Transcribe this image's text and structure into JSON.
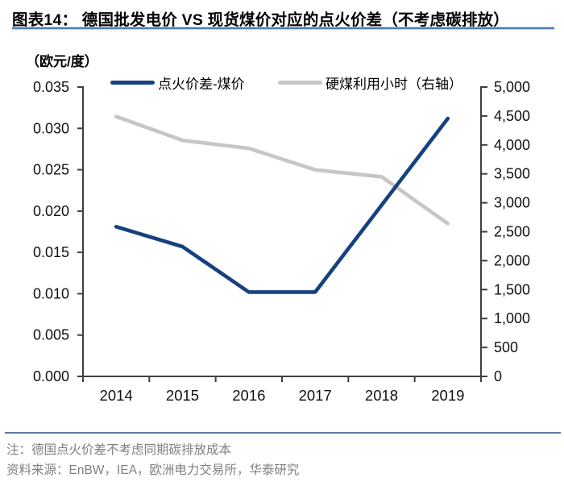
{
  "header": {
    "title": "图表14：  德国批发电价 VS 现货煤价对应的点火价差（不考虑碳排放）"
  },
  "chart_data": {
    "type": "line",
    "title": "德国批发电价 VS 现货煤价对应的点火价差（不考虑碳排放）",
    "unit_label": "（欧元/度）",
    "categories": [
      "2014",
      "2015",
      "2016",
      "2017",
      "2018",
      "2019"
    ],
    "series": [
      {
        "name": "点火价差-煤价",
        "axis": "left",
        "color": "#16417f",
        "values": [
          0.0181,
          0.0157,
          0.0102,
          0.0102,
          0.0207,
          0.0312
        ]
      },
      {
        "name": "硬煤利用小时（右轴）",
        "axis": "right",
        "color": "#c6c6c6",
        "values": [
          4490,
          4080,
          3940,
          3570,
          3450,
          2640
        ]
      }
    ],
    "left_axis": {
      "min": 0,
      "max": 0.035,
      "step": 0.005,
      "tick_labels_top_to_bottom": [
        "0.035",
        "0.030",
        "0.025",
        "0.020",
        "0.015",
        "0.010",
        "0.005",
        "0.000"
      ]
    },
    "right_axis": {
      "min": 0,
      "max": 5000,
      "step": 500,
      "tick_labels_top_to_bottom": [
        "5,000",
        "4,500",
        "4,000",
        "3,500",
        "3,000",
        "2,500",
        "2,000",
        "1,500",
        "1,000",
        "500",
        "0"
      ]
    },
    "legend_position": "top",
    "grid": false
  },
  "footer": {
    "note": "注：德国点火价差不考虑同期碳排放成本",
    "source": "资料来源：EnBW，IEA，欧洲电力交易所，华泰研究"
  },
  "colors": {
    "title_underline": "#4d7bb5",
    "footer_rule": "#5f7ca3",
    "note_text": "#808080",
    "axis_line": "#3f3f3f",
    "tick_label": "#111111",
    "series_blue": "#16417f",
    "series_gray": "#c6c6c6"
  }
}
